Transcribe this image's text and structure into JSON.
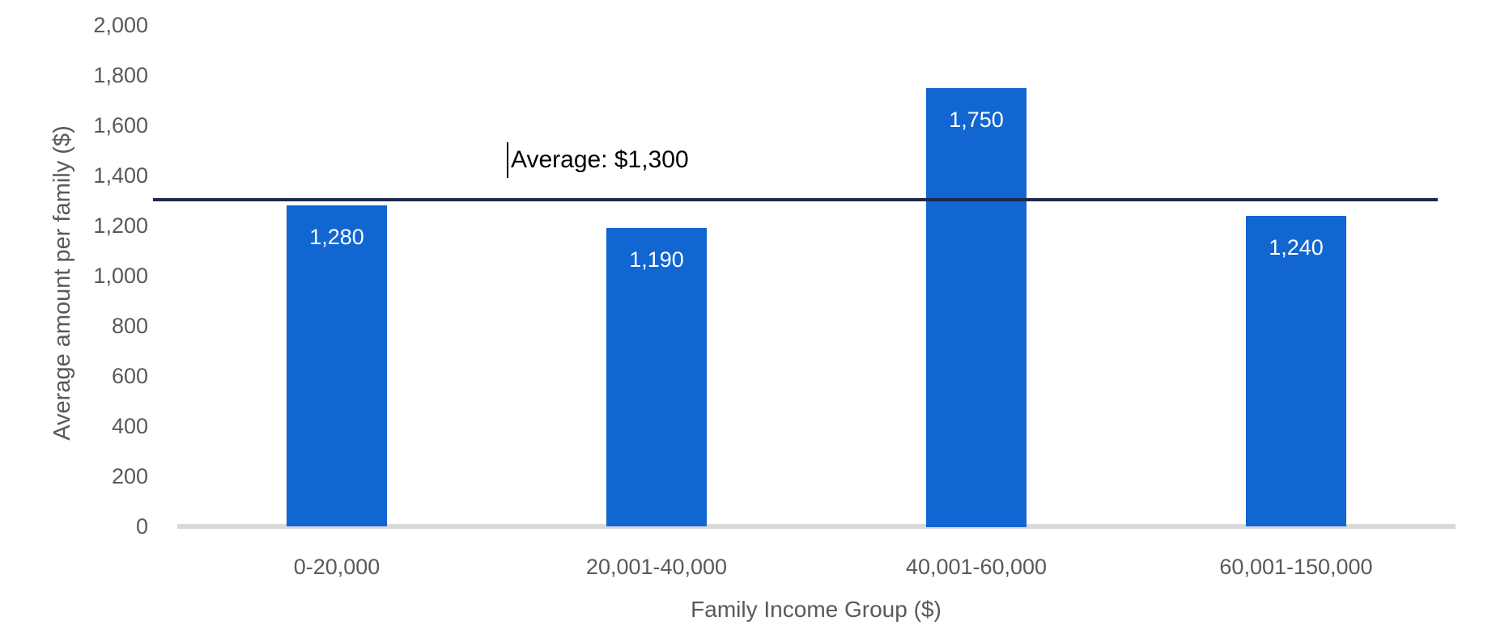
{
  "chart_data": {
    "type": "bar",
    "categories": [
      "0-20,000",
      "20,001-40,000",
      "40,001-60,000",
      "60,001-150,000"
    ],
    "values": [
      1280,
      1190,
      1750,
      1240
    ],
    "data_labels": [
      "1,280",
      "1,190",
      "1,750",
      "1,240"
    ],
    "title": "",
    "xlabel": "Family Income Group ($)",
    "ylabel": "Average amount per family ($)",
    "ylim": [
      0,
      2000
    ],
    "ytick_step": 200,
    "yticks": [
      "0",
      "200",
      "400",
      "600",
      "800",
      "1,000",
      "1,200",
      "1,400",
      "1,600",
      "1,800",
      "2,000"
    ],
    "grid": false,
    "legend": false,
    "bar_color": "#1266d1",
    "bar_label_color": "#ffffff",
    "axis_text_color": "#595959",
    "baseline_color": "#d9d9d9",
    "average_line": {
      "value": 1300,
      "label": "Average: $1,300",
      "line_color": "#1b2a49",
      "label_color": "#000000",
      "caret_visible": true
    }
  }
}
